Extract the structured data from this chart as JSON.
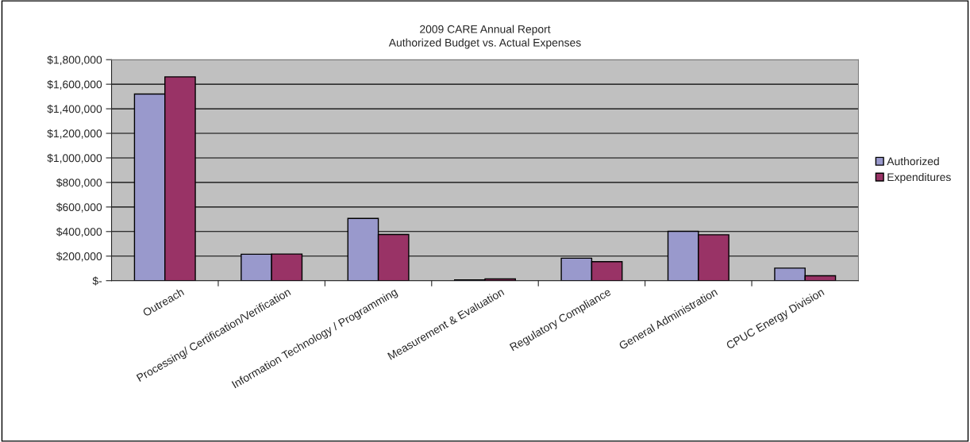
{
  "chart_data": {
    "type": "bar",
    "title": "2009 CARE Annual Report\nAuthorized Budget vs. Actual Expenses",
    "categories": [
      "Outreach",
      "Processing/ Certification/Verification",
      "Information Technology / Programming",
      "Measurement & Evaluation",
      "Regulatory Compliance",
      "General Administration",
      "CPUC Energy Division"
    ],
    "series": [
      {
        "name": "Authorized",
        "color": "#9999cc",
        "values": [
          1520000,
          215000,
          507000,
          7000,
          183000,
          402000,
          102000
        ]
      },
      {
        "name": "Expenditures",
        "color": "#993366",
        "values": [
          1660000,
          217000,
          376000,
          14000,
          155000,
          374000,
          40000
        ]
      }
    ],
    "ylim": [
      0,
      1800000
    ],
    "yticks": [
      {
        "value": 0,
        "label": "$-"
      },
      {
        "value": 200000,
        "label": "$200,000"
      },
      {
        "value": 400000,
        "label": "$400,000"
      },
      {
        "value": 600000,
        "label": "$600,000"
      },
      {
        "value": 800000,
        "label": "$800,000"
      },
      {
        "value": 1000000,
        "label": "$1,000,000"
      },
      {
        "value": 1200000,
        "label": "$1,200,000"
      },
      {
        "value": 1400000,
        "label": "$1,400,000"
      },
      {
        "value": 1600000,
        "label": "$1,600,000"
      },
      {
        "value": 1800000,
        "label": "$1,800,000"
      }
    ],
    "grid": "y",
    "legend": "right"
  }
}
